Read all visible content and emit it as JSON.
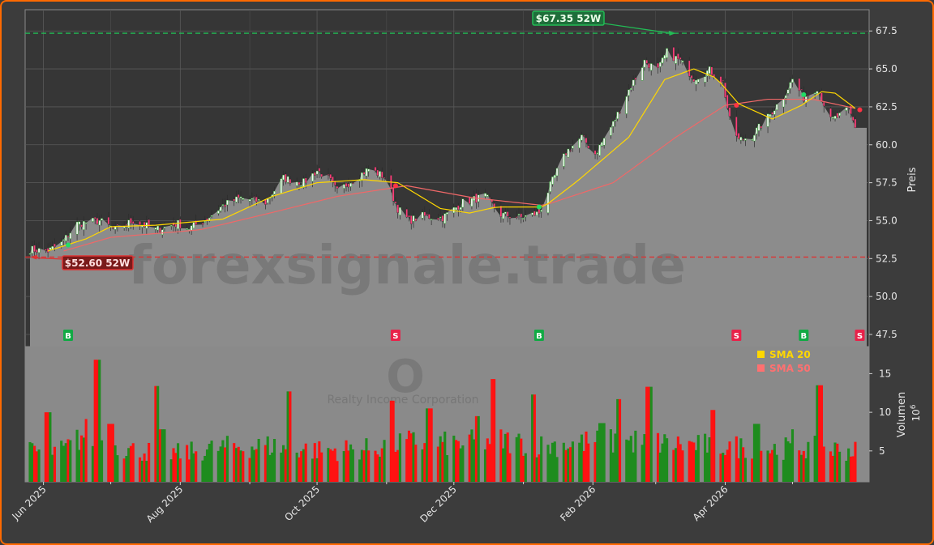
{
  "watermark": "forexsignale.trade",
  "ticker_logo": "O",
  "company_name": "Realty Income Corporation",
  "chart_data": [
    {
      "type": "candlestick",
      "ylabel": "Preis",
      "ylim": [
        46.7,
        68.9
      ],
      "yticks": [
        47.5,
        50.0,
        52.5,
        55.0,
        57.5,
        60.0,
        62.5,
        65.0,
        67.5
      ],
      "ytick_labels": [
        "47.5",
        "50.0",
        "52.5",
        "55.0",
        "57.5",
        "60.0",
        "62.5",
        "65.0",
        "67.5"
      ],
      "x_start": "2025-05-26",
      "x_end": "2026-05-29",
      "xticks": [
        "2025-06-01",
        "2025-08-01",
        "2025-10-01",
        "2025-12-01",
        "2026-02-01",
        "2026-04-01"
      ],
      "xtick_labels": [
        "Jun 2025",
        "Aug 2025",
        "Oct 2025",
        "Dec 2025",
        "Feb 2026",
        "Apr 2026"
      ],
      "grid": true,
      "close_anchors": [
        [
          "2025-05-26",
          53.1
        ],
        [
          "2025-06-03",
          53.0
        ],
        [
          "2025-06-09",
          53.5
        ],
        [
          "2025-06-16",
          54.8
        ],
        [
          "2025-06-26",
          55.0
        ],
        [
          "2025-07-03",
          54.4
        ],
        [
          "2025-07-11",
          55.0
        ],
        [
          "2025-07-21",
          54.4
        ],
        [
          "2025-07-31",
          54.8
        ],
        [
          "2025-08-05",
          54.5
        ],
        [
          "2025-08-12",
          55.0
        ],
        [
          "2025-08-20",
          56.0
        ],
        [
          "2025-08-28",
          56.5
        ],
        [
          "2025-09-08",
          56.2
        ],
        [
          "2025-09-16",
          57.8
        ],
        [
          "2025-09-25",
          57.5
        ],
        [
          "2025-10-01",
          58.3
        ],
        [
          "2025-10-06",
          57.8
        ],
        [
          "2025-10-10",
          56.9
        ],
        [
          "2025-10-16",
          57.6
        ],
        [
          "2025-10-24",
          58.4
        ],
        [
          "2025-10-31",
          57.9
        ],
        [
          "2025-11-06",
          55.8
        ],
        [
          "2025-11-11",
          55.0
        ],
        [
          "2025-11-17",
          55.3
        ],
        [
          "2025-11-26",
          55.2
        ],
        [
          "2025-12-05",
          56.2
        ],
        [
          "2025-12-15",
          56.6
        ],
        [
          "2025-12-22",
          55.4
        ],
        [
          "2025-12-31",
          55.2
        ],
        [
          "2026-01-08",
          55.5
        ],
        [
          "2026-01-13",
          57.3
        ],
        [
          "2026-01-20",
          59.5
        ],
        [
          "2026-01-27",
          60.5
        ],
        [
          "2026-02-02",
          59.4
        ],
        [
          "2026-02-10",
          61.4
        ],
        [
          "2026-02-17",
          63.6
        ],
        [
          "2026-02-24",
          65.5
        ],
        [
          "2026-03-02",
          64.9
        ],
        [
          "2026-03-06",
          66.1
        ],
        [
          "2026-03-12",
          65.5
        ],
        [
          "2026-03-18",
          64.4
        ],
        [
          "2026-03-25",
          64.9
        ],
        [
          "2026-03-31",
          64.1
        ],
        [
          "2026-04-03",
          61.6
        ],
        [
          "2026-04-07",
          60.3
        ],
        [
          "2026-04-13",
          60.6
        ],
        [
          "2026-04-20",
          61.8
        ],
        [
          "2026-04-27",
          63.2
        ],
        [
          "2026-05-01",
          64.3
        ],
        [
          "2026-05-06",
          63.1
        ],
        [
          "2026-05-12",
          63.8
        ],
        [
          "2026-05-18",
          61.6
        ],
        [
          "2026-05-22",
          61.9
        ],
        [
          "2026-05-26",
          62.3
        ],
        [
          "2026-05-29",
          61.2
        ]
      ],
      "sma20_anchors": [
        [
          "2025-06-03",
          53.0
        ],
        [
          "2025-06-20",
          53.8
        ],
        [
          "2025-07-01",
          54.6
        ],
        [
          "2025-07-21",
          54.7
        ],
        [
          "2025-08-20",
          55.1
        ],
        [
          "2025-09-11",
          56.6
        ],
        [
          "2025-10-01",
          57.5
        ],
        [
          "2025-10-22",
          57.7
        ],
        [
          "2025-11-06",
          57.5
        ],
        [
          "2025-11-25",
          55.8
        ],
        [
          "2025-12-08",
          55.5
        ],
        [
          "2025-12-20",
          55.9
        ],
        [
          "2026-01-10",
          55.9
        ],
        [
          "2026-01-25",
          57.6
        ],
        [
          "2026-02-17",
          60.5
        ],
        [
          "2026-03-05",
          64.3
        ],
        [
          "2026-03-18",
          65.0
        ],
        [
          "2026-03-28",
          64.4
        ],
        [
          "2026-04-07",
          62.7
        ],
        [
          "2026-04-22",
          61.7
        ],
        [
          "2026-05-05",
          62.6
        ],
        [
          "2026-05-14",
          63.5
        ],
        [
          "2026-05-20",
          63.4
        ],
        [
          "2026-05-29",
          62.4
        ]
      ],
      "sma50_anchors": [
        [
          "2025-06-10",
          53.0
        ],
        [
          "2025-07-01",
          53.9
        ],
        [
          "2025-08-10",
          54.4
        ],
        [
          "2025-09-10",
          55.5
        ],
        [
          "2025-10-10",
          56.6
        ],
        [
          "2025-11-10",
          57.3
        ],
        [
          "2025-12-10",
          56.5
        ],
        [
          "2026-01-10",
          56.0
        ],
        [
          "2026-02-10",
          57.5
        ],
        [
          "2026-03-10",
          60.5
        ],
        [
          "2026-04-01",
          62.6
        ],
        [
          "2026-04-20",
          63.0
        ],
        [
          "2026-05-10",
          63.0
        ],
        [
          "2026-05-29",
          62.4
        ]
      ],
      "high_52w": {
        "label": "$67.35 52W",
        "value": 67.35,
        "date": "2026-03-10"
      },
      "low_52w": {
        "label": "$52.60 52W",
        "value": 52.6,
        "date": "2025-05-26"
      },
      "signals": [
        {
          "type": "B",
          "date": "2025-06-12",
          "price": 53.4
        },
        {
          "type": "S",
          "date": "2025-11-05",
          "price": 57.3
        },
        {
          "type": "B",
          "date": "2026-01-08",
          "price": 55.9
        },
        {
          "type": "S",
          "date": "2026-04-06",
          "price": 62.6
        },
        {
          "type": "B",
          "date": "2026-05-06",
          "price": 63.3
        },
        {
          "type": "S",
          "date": "2026-05-31",
          "price": 62.3
        }
      ],
      "legend": [
        {
          "label": "SMA 20",
          "color": "#ffd700"
        },
        {
          "label": "SMA 50",
          "color": "#ff7070"
        }
      ],
      "colors": {
        "up": "#22aa22",
        "down": "#ff1a1a",
        "sma20": "#ffd700",
        "sma50": "#f06868",
        "high_line": "#22bb55",
        "low_line": "#dd3333"
      }
    },
    {
      "type": "bar",
      "ylabel": "Volumen",
      "unit": "10",
      "unit_exp": "6",
      "ylim": [
        1.0,
        18.5
      ],
      "yticks": [
        5,
        10,
        15
      ],
      "ytick_labels": [
        "5",
        "10",
        "15"
      ],
      "volume_profile": [
        [
          "2025-05-26",
          5.0
        ],
        [
          "2025-06-10",
          5.2
        ],
        [
          "2025-06-20",
          7.5
        ],
        [
          "2025-07-10",
          5.2
        ],
        [
          "2025-08-01",
          4.8
        ],
        [
          "2025-08-20",
          5.6
        ],
        [
          "2025-09-10",
          5.8
        ],
        [
          "2025-10-01",
          5.2
        ],
        [
          "2025-10-25",
          5.4
        ],
        [
          "2025-11-10",
          6.3
        ],
        [
          "2025-12-01",
          6.0
        ],
        [
          "2025-12-20",
          6.6
        ],
        [
          "2026-01-10",
          5.8
        ],
        [
          "2026-01-31",
          6.3
        ],
        [
          "2026-02-20",
          6.4
        ],
        [
          "2026-03-10",
          6.0
        ],
        [
          "2026-04-01",
          5.8
        ],
        [
          "2026-04-20",
          5.4
        ],
        [
          "2026-05-10",
          5.6
        ],
        [
          "2026-05-29",
          5.1
        ]
      ],
      "volume_spikes": [
        [
          "2025-06-03",
          10.0
        ],
        [
          "2025-06-25",
          16.8
        ],
        [
          "2025-07-01",
          8.5
        ],
        [
          "2025-07-21",
          13.4
        ],
        [
          "2025-07-24",
          7.8
        ],
        [
          "2025-09-19",
          12.7
        ],
        [
          "2025-11-03",
          11.5
        ],
        [
          "2025-11-20",
          10.5
        ],
        [
          "2025-12-12",
          9.5
        ],
        [
          "2025-12-19",
          14.3
        ],
        [
          "2026-01-05",
          12.3
        ],
        [
          "2026-02-05",
          8.6
        ],
        [
          "2026-02-13",
          11.7
        ],
        [
          "2026-02-26",
          13.3
        ],
        [
          "2026-03-27",
          10.3
        ],
        [
          "2026-04-15",
          8.5
        ],
        [
          "2026-05-02",
          7.8
        ],
        [
          "2026-05-13",
          13.5
        ]
      ]
    }
  ]
}
